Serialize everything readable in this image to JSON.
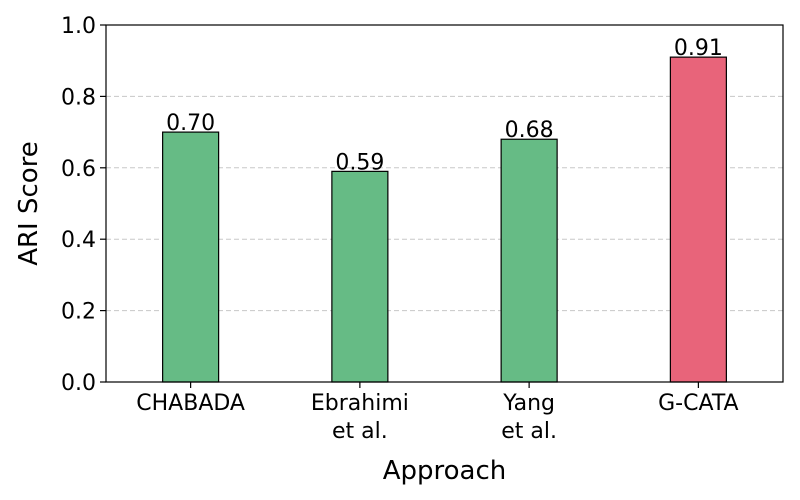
{
  "chart_data": {
    "type": "bar",
    "categories": [
      [
        "CHABADA"
      ],
      [
        "Ebrahimi",
        "et al."
      ],
      [
        "Yang",
        "et al."
      ],
      [
        "G-CATA"
      ]
    ],
    "values": [
      0.7,
      0.59,
      0.68,
      0.91
    ],
    "value_labels": [
      "0.70",
      "0.59",
      "0.68",
      "0.91"
    ],
    "bar_colors": [
      "#66bb85",
      "#66bb85",
      "#66bb85",
      "#e8647a"
    ],
    "xlabel": "Approach",
    "ylabel": "ARI Score",
    "ylim": [
      0,
      1.0
    ],
    "yticks": [
      0.0,
      0.2,
      0.4,
      0.6,
      0.8,
      1.0
    ],
    "ytick_labels": [
      "0.0",
      "0.2",
      "0.4",
      "0.6",
      "0.8",
      "1.0"
    ],
    "grid": "y-dashed",
    "legend": "none"
  }
}
